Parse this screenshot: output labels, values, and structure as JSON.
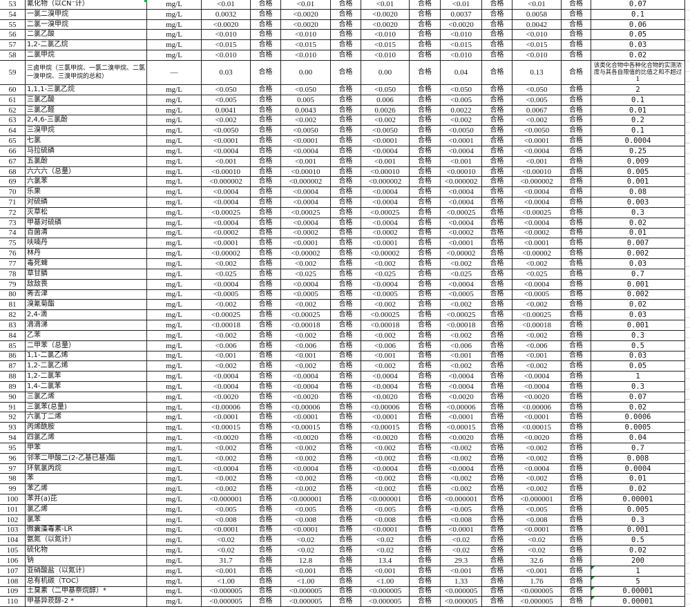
{
  "result_label": "合格",
  "accent_colors": {
    "grid": "#222222",
    "comment_flag": "#1a8a2a"
  },
  "rows": [
    {
      "no": "53",
      "name": "氰化物（以CN⁻计）",
      "unit": "mg/L",
      "values": [
        "<0.01",
        "<0.01",
        "<0.01",
        "<0.01",
        "<0.01"
      ],
      "limit": "0.07"
    },
    {
      "no": "54",
      "name": "一氯二溴甲烷",
      "unit": "mg/L",
      "values": [
        "0.0032",
        "<0.0020",
        "<0.0020",
        "0.0037",
        "0.0058"
      ],
      "limit": "0.1"
    },
    {
      "no": "55",
      "name": "二氯一溴甲烷",
      "unit": "mg/L",
      "values": [
        "<0.0020",
        "<0.0020",
        "<0.0020",
        "<0.0020",
        "0.0042"
      ],
      "limit": "0.06"
    },
    {
      "no": "56",
      "name": "二氯乙酸",
      "unit": "mg/L",
      "values": [
        "<0.010",
        "<0.010",
        "<0.010",
        "<0.010",
        "<0.010"
      ],
      "limit": "0.05"
    },
    {
      "no": "57",
      "name": "1,2-二氯乙烷",
      "unit": "mg/L",
      "values": [
        "<0.015",
        "<0.015",
        "<0.015",
        "<0.015",
        "<0.015"
      ],
      "limit": "0.03"
    },
    {
      "no": "58",
      "name": "二氯甲烷",
      "unit": "mg/L",
      "values": [
        "<0.010",
        "<0.010",
        "<0.010",
        "<0.010",
        "<0.010"
      ],
      "limit": "0.02"
    },
    {
      "no": "59",
      "name": "三卤甲烷（三氯甲烷、一氯二溴甲烷、二氯一溴甲烷、三溴甲烷的总和）",
      "unit": "—",
      "values": [
        "0.03",
        "0.00",
        "0.00",
        "0.04",
        "0.13"
      ],
      "limit": "该类化合物中各种化合物的实测浓度与其各自限值的比值之和不超过1",
      "tall": true
    },
    {
      "no": "60",
      "name": "1,1,1-三氯乙烷",
      "unit": "mg/L",
      "values": [
        "<0.050",
        "<0.050",
        "<0.050",
        "<0.050",
        "<0.050"
      ],
      "limit": "2"
    },
    {
      "no": "61",
      "name": "三氯乙酸",
      "unit": "mg/L",
      "values": [
        "<0.005",
        "0.005",
        "0.006",
        "<0.005",
        "<0.005"
      ],
      "limit": "0.1"
    },
    {
      "no": "62",
      "name": "三氯乙醛",
      "unit": "mg/L",
      "values": [
        "0.0041",
        "0.0043",
        "0.0026",
        "0.0022",
        "0.0067"
      ],
      "limit": "0.01"
    },
    {
      "no": "63",
      "name": "2,4,6-三氯酚",
      "unit": "mg/L",
      "values": [
        "<0.002",
        "<0.002",
        "<0.002",
        "<0.002",
        "<0.002"
      ],
      "limit": "0.2"
    },
    {
      "no": "64",
      "name": "三溴甲烷",
      "unit": "mg/L",
      "values": [
        "<0.0050",
        "<0.0050",
        "<0.0050",
        "<0.0050",
        "<0.0050"
      ],
      "limit": "0.1"
    },
    {
      "no": "65",
      "name": "七氯",
      "unit": "mg/L",
      "values": [
        "<0.0001",
        "<0.0001",
        "<0.0001",
        "<0.0001",
        "<0.0001"
      ],
      "limit": "0.0004"
    },
    {
      "no": "66",
      "name": "马拉硫磷",
      "unit": "mg/L",
      "values": [
        "<0.0004",
        "<0.0004",
        "<0.0004",
        "<0.0004",
        "<0.0004"
      ],
      "limit": "0.25"
    },
    {
      "no": "67",
      "name": "五氯酚",
      "unit": "mg/L",
      "values": [
        "<0.001",
        "<0.001",
        "<0.001",
        "<0.001",
        "<0.001"
      ],
      "limit": "0.009"
    },
    {
      "no": "68",
      "name": "六六六（总量）",
      "unit": "mg/L",
      "values": [
        "<0.00010",
        "<0.00010",
        "<0.00010",
        "<0.00010",
        "<0.00010"
      ],
      "limit": "0.005"
    },
    {
      "no": "69",
      "name": "六氯苯",
      "unit": "mg/L",
      "values": [
        "<0.000002",
        "<0.000002",
        "<0.000002",
        "<0.000002",
        "<0.000002"
      ],
      "limit": "0.001"
    },
    {
      "no": "70",
      "name": "乐果",
      "unit": "mg/L",
      "values": [
        "<0.0004",
        "<0.0004",
        "<0.0004",
        "<0.0004",
        "<0.0004"
      ],
      "limit": "0.08"
    },
    {
      "no": "71",
      "name": "对硫磷",
      "unit": "mg/L",
      "values": [
        "<0.0004",
        "<0.0004",
        "<0.0004",
        "<0.0004",
        "<0.0004"
      ],
      "limit": "0.003"
    },
    {
      "no": "72",
      "name": "灭草松",
      "unit": "mg/L",
      "values": [
        "<0.00025",
        "<0.00025",
        "<0.00025",
        "<0.00025",
        "<0.00025"
      ],
      "limit": "0.3"
    },
    {
      "no": "73",
      "name": "甲基对硫磷",
      "unit": "mg/L",
      "values": [
        "<0.0004",
        "<0.0004",
        "<0.0004",
        "<0.0004",
        "<0.0004"
      ],
      "limit": "0.02"
    },
    {
      "no": "74",
      "name": "百菌清",
      "unit": "mg/L",
      "values": [
        "<0.0002",
        "<0.0002",
        "<0.0002",
        "<0.0002",
        "<0.0002"
      ],
      "limit": "0.01"
    },
    {
      "no": "75",
      "name": "呋喃丹",
      "unit": "mg/L",
      "values": [
        "<0.0001",
        "<0.0001",
        "<0.0001",
        "<0.0001",
        "<0.0001"
      ],
      "limit": "0.007"
    },
    {
      "no": "76",
      "name": "林丹",
      "unit": "mg/L",
      "values": [
        "<0.00002",
        "<0.00002",
        "<0.00002",
        "<0.00002",
        "<0.00002"
      ],
      "limit": "0.002"
    },
    {
      "no": "77",
      "name": "毒死蜱",
      "unit": "mg/L",
      "values": [
        "<0.002",
        "<0.002",
        "<0.002",
        "<0.002",
        "<0.002"
      ],
      "limit": "0.03"
    },
    {
      "no": "78",
      "name": "草甘膦",
      "unit": "mg/L",
      "values": [
        "<0.025",
        "<0.025",
        "<0.025",
        "<0.025",
        "<0.025"
      ],
      "limit": "0.7"
    },
    {
      "no": "79",
      "name": "敌敌畏",
      "unit": "mg/L",
      "values": [
        "<0.0004",
        "<0.0004",
        "<0.0004",
        "<0.0004",
        "<0.0004"
      ],
      "limit": "0.001"
    },
    {
      "no": "80",
      "name": "莠去津",
      "unit": "mg/L",
      "values": [
        "<0.0005",
        "<0.0005",
        "<0.0005",
        "<0.0005",
        "<0.0005"
      ],
      "limit": "0.002"
    },
    {
      "no": "81",
      "name": "溴氰菊酯",
      "unit": "mg/L",
      "values": [
        "<0.002",
        "<0.002",
        "<0.002",
        "<0.002",
        "<0.002"
      ],
      "limit": "0.02"
    },
    {
      "no": "82",
      "name": "2,4-滴",
      "unit": "mg/L",
      "values": [
        "<0.00025",
        "<0.00025",
        "<0.00025",
        "<0.00025",
        "<0.00025"
      ],
      "limit": "0.03"
    },
    {
      "no": "83",
      "name": "滴滴涕",
      "unit": "mg/L",
      "values": [
        "<0.00018",
        "<0.00018",
        "<0.00018",
        "<0.00018",
        "<0.00018"
      ],
      "limit": "0.001"
    },
    {
      "no": "84",
      "name": "乙苯",
      "unit": "mg/L",
      "values": [
        "<0.002",
        "<0.002",
        "<0.002",
        "<0.002",
        "<0.002"
      ],
      "limit": "0.3"
    },
    {
      "no": "85",
      "name": "二甲苯（总量）",
      "unit": "mg/L",
      "values": [
        "<0.006",
        "<0.006",
        "<0.006",
        "<0.006",
        "<0.006"
      ],
      "limit": "0.5"
    },
    {
      "no": "86",
      "name": "1,1-二氯乙烯",
      "unit": "mg/L",
      "values": [
        "<0.001",
        "<0.001",
        "<0.001",
        "<0.001",
        "<0.001"
      ],
      "limit": "0.03"
    },
    {
      "no": "87",
      "name": "1,2-二氯乙烯",
      "unit": "mg/L",
      "values": [
        "<0.002",
        "<0.002",
        "<0.002",
        "<0.002",
        "<0.002"
      ],
      "limit": "0.05"
    },
    {
      "no": "88",
      "name": "1,2-二氯苯",
      "unit": "mg/L",
      "values": [
        "<0.0004",
        "<0.0004",
        "<0.0004",
        "<0.0004",
        "<0.0004"
      ],
      "limit": "1"
    },
    {
      "no": "89",
      "name": "1,4-二氯苯",
      "unit": "mg/L",
      "values": [
        "<0.0004",
        "<0.0004",
        "<0.0004",
        "<0.0004",
        "<0.0004"
      ],
      "limit": "0.3"
    },
    {
      "no": "90",
      "name": "三氯乙烯",
      "unit": "mg/L",
      "values": [
        "<0.0020",
        "<0.0020",
        "<0.0020",
        "<0.0020",
        "<0.0020"
      ],
      "limit": "0.07"
    },
    {
      "no": "91",
      "name": "三氯苯(总量)",
      "unit": "mg/L",
      "values": [
        "<0.00006",
        "<0.00006",
        "<0.00006",
        "<0.00006",
        "<0.00006"
      ],
      "limit": "0.02"
    },
    {
      "no": "92",
      "name": "六氯丁二烯",
      "unit": "mg/L",
      "values": [
        "<0.0001",
        "<0.0001",
        "<0.0001",
        "<0.0001",
        "<0.0001"
      ],
      "limit": "0.0006"
    },
    {
      "no": "93",
      "name": "丙烯酰胺",
      "unit": "mg/L",
      "values": [
        "<0.00015",
        "<0.00015",
        "<0.00015",
        "<0.00015",
        "<0.00015"
      ],
      "limit": "0.0005"
    },
    {
      "no": "94",
      "name": "四氯乙烯",
      "unit": "mg/L",
      "values": [
        "<0.0020",
        "<0.0020",
        "<0.0020",
        "<0.0020",
        "<0.0020"
      ],
      "limit": "0.04"
    },
    {
      "no": "95",
      "name": "甲苯",
      "unit": "mg/L",
      "values": [
        "<0.002",
        "<0.002",
        "<0.002",
        "<0.002",
        "<0.002"
      ],
      "limit": "0.7"
    },
    {
      "no": "96",
      "name": "邻苯二甲酸二(2-乙基已基)酯",
      "unit": "mg/L",
      "values": [
        "<0.002",
        "<0.002",
        "<0.002",
        "<0.002",
        "<0.002"
      ],
      "limit": "0.008"
    },
    {
      "no": "97",
      "name": "环氧氯丙烷",
      "unit": "mg/L",
      "values": [
        "<0.0004",
        "<0.0004",
        "<0.0004",
        "<0.0004",
        "<0.0004"
      ],
      "limit": "0.0004"
    },
    {
      "no": "98",
      "name": "苯",
      "unit": "mg/L",
      "values": [
        "<0.002",
        "<0.002",
        "<0.002",
        "<0.002",
        "<0.002"
      ],
      "limit": "0.01"
    },
    {
      "no": "99",
      "name": "苯乙烯",
      "unit": "mg/L",
      "values": [
        "<0.002",
        "<0.002",
        "<0.002",
        "<0.002",
        "<0.002"
      ],
      "limit": "0.02"
    },
    {
      "no": "100",
      "name": "苯并(a)芘",
      "unit": "mg/L",
      "values": [
        "<0.000001",
        "<0.000001",
        "<0.000001",
        "<0.000001",
        "<0.000001"
      ],
      "limit": "0.00001"
    },
    {
      "no": "101",
      "name": "氯乙烯",
      "unit": "mg/L",
      "values": [
        "<0.005",
        "<0.005",
        "<0.005",
        "<0.005",
        "<0.005"
      ],
      "limit": "0.005"
    },
    {
      "no": "102",
      "name": "氯苯",
      "unit": "mg/L",
      "values": [
        "<0.008",
        "<0.008",
        "<0.008",
        "<0.008",
        "<0.008"
      ],
      "limit": "0.3"
    },
    {
      "no": "103",
      "name": "微囊藻毒素-LR",
      "unit": "mg/L",
      "values": [
        "<0.0001",
        "<0.0001",
        "<0.0001",
        "<0.0001",
        "<0.0001"
      ],
      "limit": "0.001"
    },
    {
      "no": "104",
      "name": "氨氮（以氮计）",
      "unit": "mg/L",
      "values": [
        "<0.02",
        "<0.02",
        "<0.02",
        "<0.02",
        "<0.02"
      ],
      "limit": "0.5"
    },
    {
      "no": "105",
      "name": "硫化物",
      "unit": "mg/L",
      "values": [
        "<0.02",
        "<0.02",
        "<0.02",
        "<0.02",
        "<0.02"
      ],
      "limit": "0.02"
    },
    {
      "no": "106",
      "name": "钠",
      "unit": "mg/L",
      "values": [
        "31.7",
        "12.8",
        "13.4",
        "29.3",
        "32.6"
      ],
      "limit": "200"
    },
    {
      "no": "107",
      "name": "亚硝酸盐（以氮计）",
      "unit": "mg/L",
      "values": [
        "<0.001",
        "<0.001",
        "<0.001",
        "<0.001",
        "<0.001"
      ],
      "limit": "1",
      "flag": true
    },
    {
      "no": "108",
      "name": "总有机碳（TOC）",
      "unit": "mg/L",
      "values": [
        "<1.00",
        "<1.00",
        "<1.00",
        "1.33",
        "1.76"
      ],
      "limit": "5",
      "flag": true
    },
    {
      "no": "109",
      "name": "土臭素（二甲基萘烷醇）*",
      "unit": "mg/L",
      "values": [
        "<0.000005",
        "<0.000005",
        "<0.000005",
        "<0.000005",
        "<0.000005"
      ],
      "limit": "0.00001",
      "flag": true
    },
    {
      "no": "110",
      "name": "甲基异莰醇-2 *",
      "unit": "mg/L",
      "values": [
        "<0.000005",
        "<0.000005",
        "<0.000005",
        "<0.000005",
        "<0.000005"
      ],
      "limit": "0.00001",
      "flag": true
    }
  ]
}
